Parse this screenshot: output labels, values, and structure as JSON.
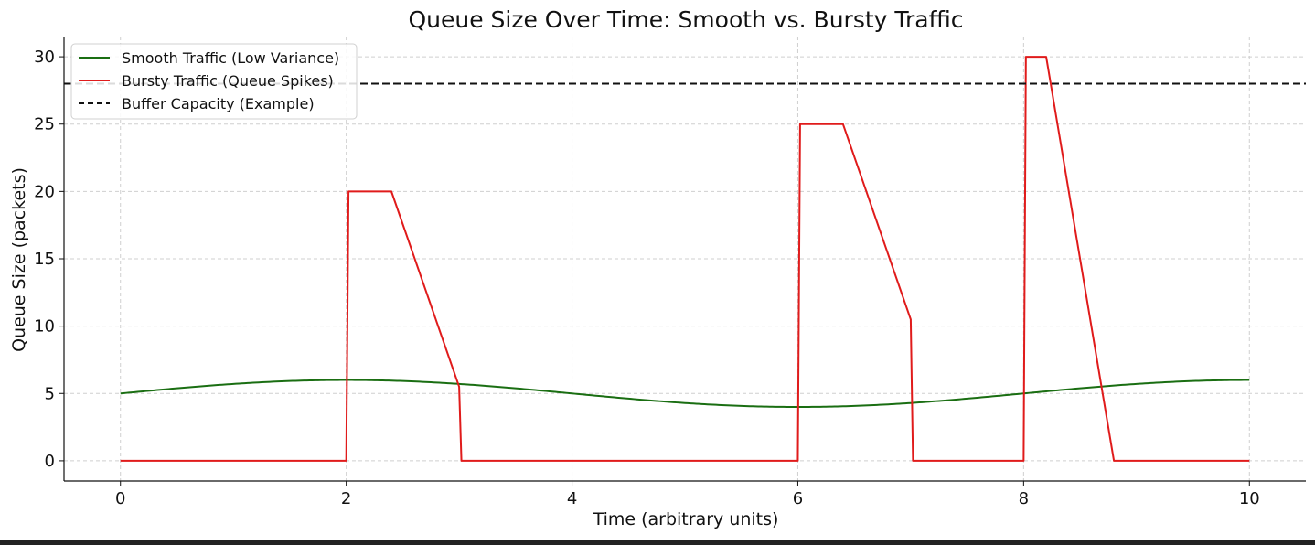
{
  "chart_data": {
    "type": "line",
    "title": "Queue Size Over Time: Smooth vs. Bursty Traffic",
    "xlabel": "Time (arbitrary units)",
    "ylabel": "Queue Size (packets)",
    "xlim": [
      -0.5,
      10.5
    ],
    "ylim": [
      -1.5,
      31.5
    ],
    "xticks": [
      0,
      2,
      4,
      6,
      8,
      10
    ],
    "yticks": [
      0,
      5,
      10,
      15,
      20,
      25,
      30
    ],
    "grid": true,
    "legend_position": "upper-left",
    "series": [
      {
        "name": "Smooth Traffic (Low Variance)",
        "color": "#1a6e12",
        "style": "solid",
        "function": "5 + sin(2*pi*x/8)",
        "x_range": [
          0,
          10
        ]
      },
      {
        "name": "Bursty Traffic (Queue Spikes)",
        "color": "#e01b1b",
        "style": "solid",
        "x": [
          0,
          2,
          2.02,
          2.4,
          3.0,
          3.02,
          6,
          6.02,
          6.4,
          7.0,
          7.02,
          8,
          8.02,
          8.2,
          8.8,
          10
        ],
        "y": [
          0,
          0,
          20,
          20,
          5.5,
          0,
          0,
          25,
          25,
          10.5,
          0,
          0,
          30,
          30,
          0,
          0
        ]
      },
      {
        "name": "Buffer Capacity (Example)",
        "color": "#111111",
        "style": "dashed",
        "type": "hline",
        "y": 28
      }
    ]
  }
}
